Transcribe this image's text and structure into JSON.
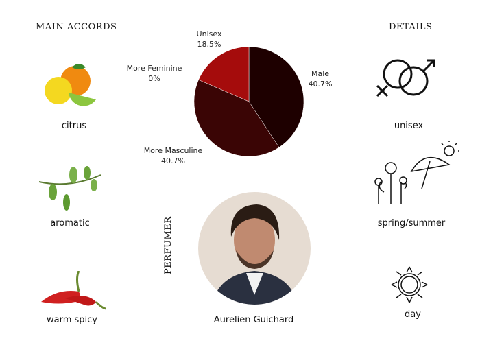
{
  "headings": {
    "accords": "MAIN ACCORDS",
    "details": "DETAILS",
    "perfumer": "PERFUMER"
  },
  "accords": [
    {
      "label": "citrus",
      "icon": "citrus-fruit-icon"
    },
    {
      "label": "aromatic",
      "icon": "herb-sprig-icon"
    },
    {
      "label": "warm spicy",
      "icon": "chili-pepper-icon"
    }
  ],
  "details": [
    {
      "label": "unisex",
      "icon": "gender-symbols-icon"
    },
    {
      "label": "spring/summer",
      "icon": "flowers-umbrella-sun-icon"
    },
    {
      "label": "day",
      "icon": "sun-icon"
    }
  ],
  "perfumer": {
    "name": "Aurelien Guichard"
  },
  "chart_data": {
    "type": "pie",
    "slices": [
      {
        "name": "Male",
        "label": "40.7%",
        "value": 40.7,
        "color": "#1e0000"
      },
      {
        "name": "More Masculine",
        "label": "40.7%",
        "value": 40.7,
        "color": "#3a0505"
      },
      {
        "name": "More Feminine",
        "label": "0%",
        "value": 0,
        "color": "#c01010"
      },
      {
        "name": "Unisex",
        "label": "18.5%",
        "value": 18.5,
        "color": "#a50c0c"
      }
    ]
  }
}
